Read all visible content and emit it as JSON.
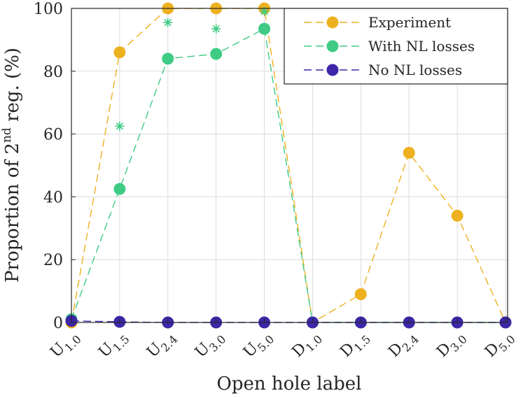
{
  "chart_data": {
    "type": "line",
    "xlabel": "Open hole label",
    "ylabel": {
      "prefix": "Proportion of 2",
      "superscript": "nd",
      "suffix": " reg. (%)"
    },
    "ylim": [
      0,
      100
    ],
    "yticks": [
      0,
      20,
      40,
      60,
      80,
      100
    ],
    "grid": true,
    "legend_position": "top-right",
    "categories": [
      {
        "base": "U",
        "sub": "1.0"
      },
      {
        "base": "U",
        "sub": "1.5"
      },
      {
        "base": "U",
        "sub": "2.4"
      },
      {
        "base": "U",
        "sub": "3.0"
      },
      {
        "base": "U",
        "sub": "5.0"
      },
      {
        "base": "D",
        "sub": "1.0"
      },
      {
        "base": "D",
        "sub": "1.5"
      },
      {
        "base": "D",
        "sub": "2.4"
      },
      {
        "base": "D",
        "sub": "3.0"
      },
      {
        "base": "D",
        "sub": "5.0"
      }
    ],
    "series": [
      {
        "name": "Experiment",
        "color": "#EDB120",
        "marker": "circle",
        "values": [
          0,
          86,
          100,
          100,
          100,
          0,
          9,
          54,
          34,
          0
        ]
      },
      {
        "name": "With NL losses",
        "color": "#3FCB84",
        "marker": "circle",
        "values": [
          1,
          42.5,
          84,
          85.5,
          93.5,
          0,
          0,
          0,
          0,
          0
        ],
        "extra_markers": {
          "marker": "asterisk",
          "values": [
            0.5,
            62.5,
            95.5,
            93.5,
            99,
            null,
            null,
            null,
            null,
            null
          ]
        }
      },
      {
        "name": "No NL losses",
        "color": "#3D26A8",
        "marker": "circle",
        "values": [
          0.5,
          0.2,
          0,
          0,
          0,
          0,
          0,
          0,
          0,
          0
        ]
      }
    ]
  }
}
